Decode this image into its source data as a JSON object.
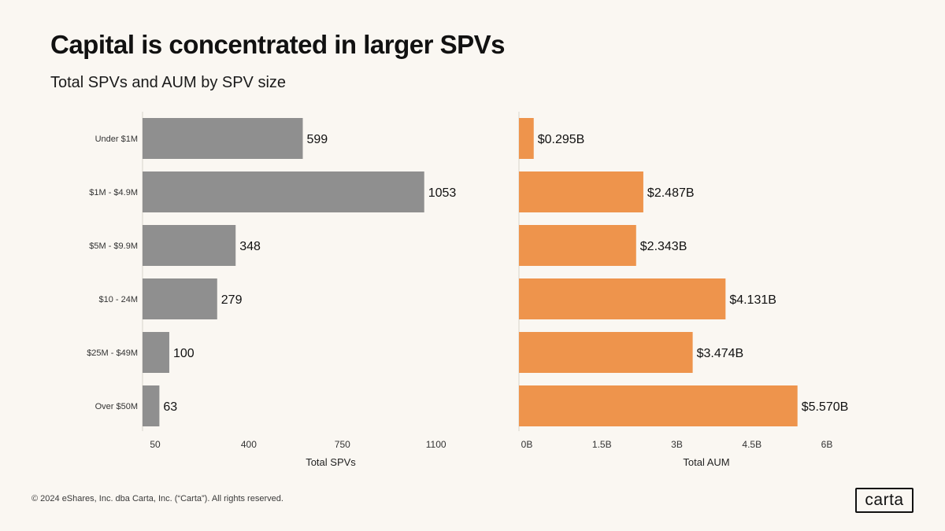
{
  "header": {
    "title": "Capital is concentrated in larger SPVs",
    "subtitle": "Total SPVs and AUM by SPV size"
  },
  "chart_data": [
    {
      "type": "bar",
      "orientation": "horizontal",
      "title": "Total SPVs",
      "categories": [
        "Under $1M",
        "$1M - $4.9M",
        "$5M - $9.9M",
        "$10 - 24M",
        "$25M - $49M",
        "Over $50M"
      ],
      "values": [
        599,
        1053,
        348,
        279,
        100,
        63
      ],
      "value_labels": [
        "599",
        "1053",
        "348",
        "279",
        "100",
        "63"
      ],
      "xlabel": "Total SPVs",
      "xticks": [
        50,
        400,
        750,
        1100
      ],
      "xtick_labels": [
        "50",
        "400",
        "750",
        "1100"
      ],
      "xlim": [
        0,
        1100
      ],
      "color": "#8f8f8f"
    },
    {
      "type": "bar",
      "orientation": "horizontal",
      "title": "Total AUM",
      "categories": [
        "Under $1M",
        "$1M - $4.9M",
        "$5M - $9.9M",
        "$10 - 24M",
        "$25M - $49M",
        "Over $50M"
      ],
      "values": [
        0.295,
        2.487,
        2.343,
        4.131,
        3.474,
        5.57
      ],
      "value_labels": [
        "$0.295B",
        "$2.487B",
        "$2.343B",
        "$4.131B",
        "$3.474B",
        "$5.570B"
      ],
      "xlabel": "Total AUM",
      "xticks": [
        0,
        1.5,
        3,
        4.5,
        6
      ],
      "xtick_labels": [
        "0B",
        "1.5B",
        "3B",
        "4.5B",
        "6B"
      ],
      "xlim": [
        0,
        6
      ],
      "color": "#ee944c"
    }
  ],
  "footer": {
    "copyright": "© 2024 eShares, Inc. dba Carta, Inc. (“Carta”). All rights reserved.",
    "logo_text": "carta"
  }
}
